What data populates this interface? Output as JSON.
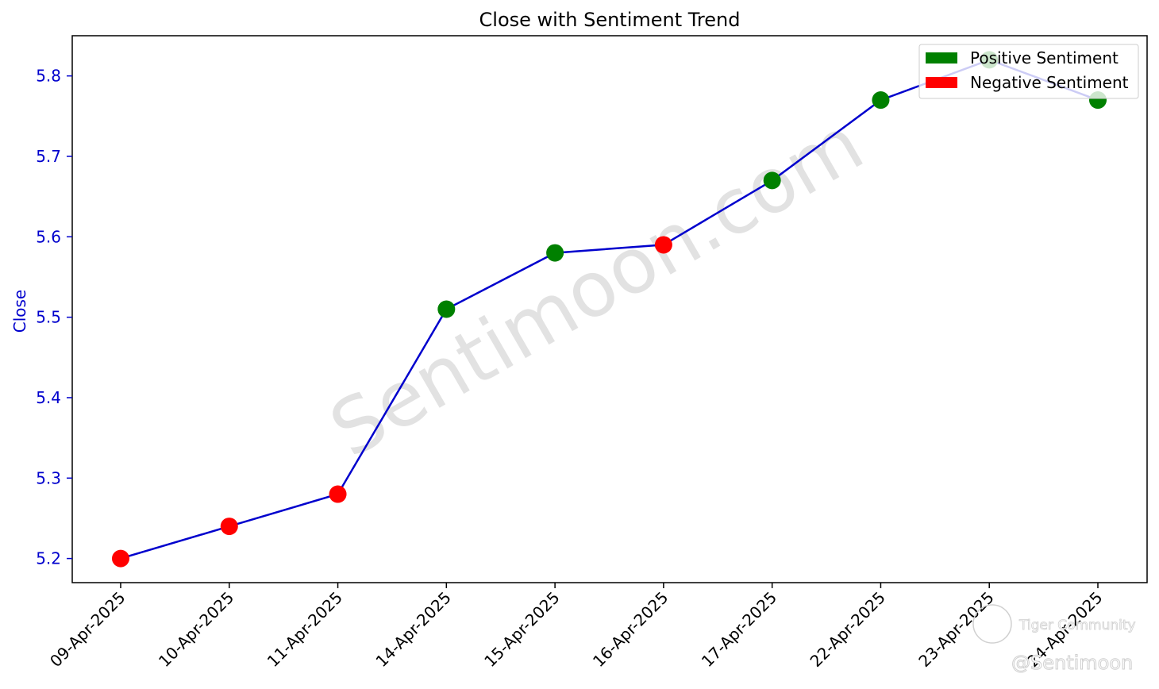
{
  "chart_data": {
    "type": "line",
    "title": "Close with Sentiment Trend",
    "xlabel": "",
    "ylabel": "Close",
    "ylim": [
      5.17,
      5.85
    ],
    "yticks": [
      "5.2",
      "5.3",
      "5.4",
      "5.5",
      "5.6",
      "5.7",
      "5.8"
    ],
    "categories": [
      "09-Apr-2025",
      "10-Apr-2025",
      "11-Apr-2025",
      "14-Apr-2025",
      "15-Apr-2025",
      "16-Apr-2025",
      "17-Apr-2025",
      "22-Apr-2025",
      "23-Apr-2025",
      "24-Apr-2025"
    ],
    "values": [
      5.2,
      5.24,
      5.28,
      5.51,
      5.58,
      5.59,
      5.67,
      5.77,
      5.82,
      5.77
    ],
    "sentiment": [
      "negative",
      "negative",
      "negative",
      "positive",
      "positive",
      "negative",
      "positive",
      "positive",
      "positive",
      "positive"
    ],
    "legend": [
      {
        "key": "positive",
        "label": "Positive Sentiment",
        "color": "#008000"
      },
      {
        "key": "negative",
        "label": "Negative Sentiment",
        "color": "#ff0000"
      }
    ],
    "legend_position": "top-right",
    "line_color": "#0000cd",
    "axis_color": "#0000cd",
    "grid": false
  },
  "watermark": {
    "text": "Sentimoon.com"
  },
  "credits": {
    "community": "Tiger Community",
    "handle": "@Sentimoon"
  }
}
